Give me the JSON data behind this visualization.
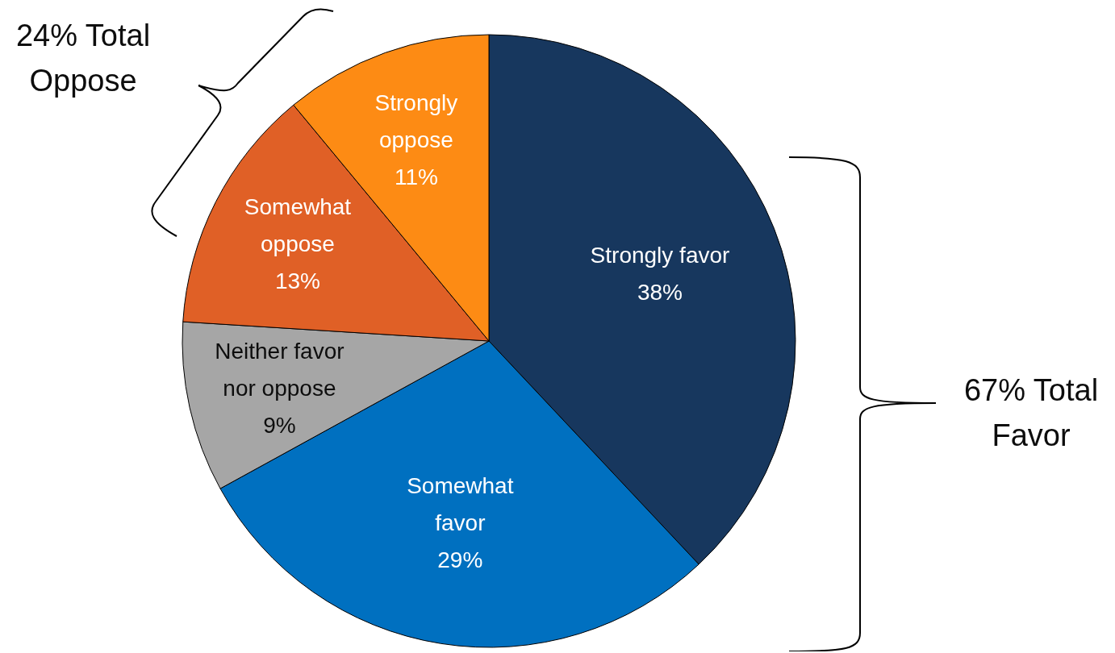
{
  "chart_data": {
    "type": "pie",
    "categories": [
      "Strongly favor",
      "Somewhat favor",
      "Neither favor nor oppose",
      "Somewhat oppose",
      "Strongly oppose"
    ],
    "values": [
      38,
      29,
      9,
      13,
      11
    ],
    "value_labels": [
      "38%",
      "29%",
      "9%",
      "13%",
      "11%"
    ],
    "colors": [
      "#17375e",
      "#0070c0",
      "#a6a6a6",
      "#e06026",
      "#fd8b14"
    ],
    "annotations": [
      "24% Total Oppose",
      "67% Total Favor"
    ],
    "legend": false
  }
}
